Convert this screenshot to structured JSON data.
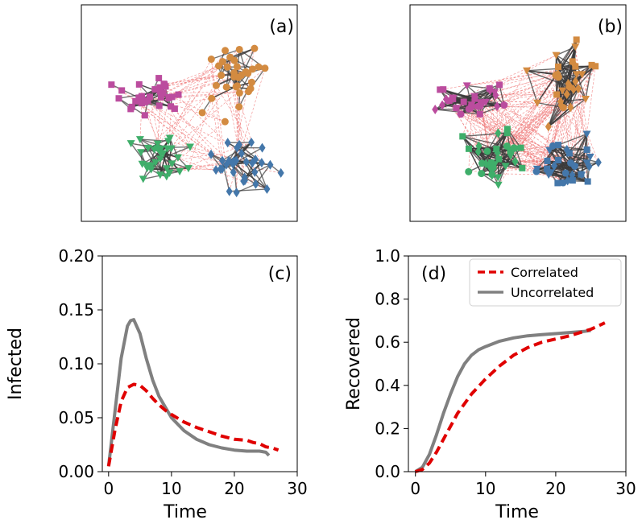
{
  "colors": {
    "correlated": "#e00000",
    "uncorrelated": "#808080",
    "magenta": "#bb4c9e",
    "orange": "#d38b41",
    "green": "#3fae6a",
    "blue": "#4477aa",
    "edge_dark": "#3a3a3a",
    "edge_red": "#f08080"
  },
  "network_panels": [
    {
      "label": "(a)",
      "style": "single-shape",
      "cross_density": "sparse"
    },
    {
      "label": "(b)",
      "style": "mixed-shape",
      "cross_density": "dense"
    }
  ],
  "chart_data": [
    {
      "type": "line",
      "panel_label": "(c)",
      "xlabel": "Time",
      "ylabel": "Infected",
      "xlim": [
        -1,
        30
      ],
      "ylim": [
        0,
        0.2
      ],
      "xticks": [
        "0",
        "10",
        "20",
        "30"
      ],
      "yticks": [
        "0.00",
        "0.05",
        "0.10",
        "0.15",
        "0.20"
      ],
      "xtick_values": [
        0,
        10,
        20,
        30
      ],
      "ytick_values": [
        0,
        0.05,
        0.1,
        0.15,
        0.2
      ],
      "series": [
        {
          "name": "Correlated",
          "style": "dashed",
          "color": "#e00000",
          "x": [
            0,
            1,
            2,
            3,
            4,
            5,
            6,
            7,
            8,
            9,
            10,
            12,
            14,
            16,
            18,
            20,
            22,
            23,
            24,
            25,
            26,
            27
          ],
          "y": [
            0.005,
            0.038,
            0.065,
            0.078,
            0.081,
            0.08,
            0.075,
            0.068,
            0.062,
            0.057,
            0.053,
            0.046,
            0.041,
            0.037,
            0.033,
            0.03,
            0.029,
            0.027,
            0.026,
            0.023,
            0.022,
            0.02
          ]
        },
        {
          "name": "Uncorrelated",
          "style": "solid",
          "color": "#808080",
          "x": [
            0,
            1,
            2,
            3,
            3.5,
            4,
            5,
            6,
            7,
            8,
            9,
            10,
            12,
            14,
            16,
            18,
            20,
            22,
            23,
            24,
            25,
            25.5
          ],
          "y": [
            0.005,
            0.055,
            0.105,
            0.135,
            0.14,
            0.141,
            0.128,
            0.105,
            0.085,
            0.07,
            0.06,
            0.05,
            0.038,
            0.03,
            0.025,
            0.022,
            0.02,
            0.019,
            0.019,
            0.019,
            0.018,
            0.015
          ]
        }
      ]
    },
    {
      "type": "line",
      "panel_label": "(d)",
      "xlabel": "Time",
      "ylabel": "Recovered",
      "xlim": [
        -1,
        30
      ],
      "ylim": [
        0,
        1.0
      ],
      "xticks": [
        "0",
        "10",
        "20",
        "30"
      ],
      "yticks": [
        "0.0",
        "0.2",
        "0.4",
        "0.6",
        "0.8",
        "1.0"
      ],
      "xtick_values": [
        0,
        10,
        20,
        30
      ],
      "ytick_values": [
        0,
        0.2,
        0.4,
        0.6,
        0.8,
        1.0
      ],
      "legend": {
        "position": "top-right",
        "entries": [
          "Correlated",
          "Uncorrelated"
        ]
      },
      "series": [
        {
          "name": "Correlated",
          "style": "dashed",
          "color": "#e00000",
          "x": [
            0,
            1,
            2,
            3,
            4,
            5,
            6,
            8,
            10,
            12,
            14,
            16,
            18,
            20,
            22,
            24,
            25,
            26,
            27
          ],
          "y": [
            0.0,
            0.01,
            0.04,
            0.09,
            0.15,
            0.21,
            0.27,
            0.36,
            0.43,
            0.49,
            0.54,
            0.575,
            0.6,
            0.615,
            0.63,
            0.65,
            0.66,
            0.675,
            0.69
          ]
        },
        {
          "name": "Uncorrelated",
          "style": "solid",
          "color": "#808080",
          "x": [
            0,
            1,
            2,
            3,
            4,
            5,
            6,
            7,
            8,
            9,
            10,
            12,
            14,
            16,
            18,
            20,
            22,
            24,
            25
          ],
          "y": [
            0.0,
            0.02,
            0.08,
            0.17,
            0.27,
            0.36,
            0.44,
            0.5,
            0.54,
            0.565,
            0.58,
            0.605,
            0.62,
            0.63,
            0.635,
            0.64,
            0.645,
            0.65,
            0.655
          ]
        }
      ]
    }
  ]
}
